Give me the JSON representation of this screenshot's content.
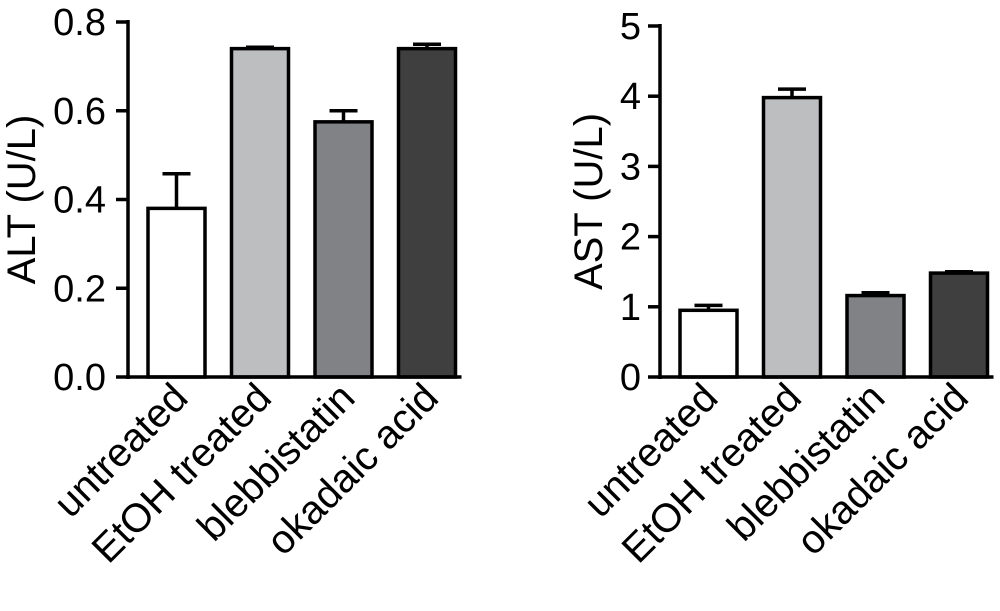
{
  "chart_data": [
    {
      "type": "bar",
      "title": "",
      "xlabel": "",
      "ylabel": "ALT (U/L)",
      "ylim": [
        0,
        0.8
      ],
      "yticks": [
        0,
        0.2,
        0.4,
        0.6,
        0.8
      ],
      "ytick_labels": [
        "0.0",
        "0.2",
        "0.4",
        "0.6",
        "0.8"
      ],
      "grid": false,
      "categories": [
        "untreated",
        "EtOH treated",
        "blebbistatin",
        "okadaic acid"
      ],
      "values": [
        0.38,
        0.74,
        0.575,
        0.74
      ],
      "errors": [
        0.078,
        0.003,
        0.025,
        0.01
      ],
      "colors": [
        "#ffffff",
        "#bdbec0",
        "#818285",
        "#3f3f3f"
      ]
    },
    {
      "type": "bar",
      "title": "",
      "xlabel": "",
      "ylabel": "AST (U/L)",
      "ylim": [
        0,
        5
      ],
      "yticks": [
        0,
        1,
        2,
        3,
        4,
        5
      ],
      "ytick_labels": [
        "0",
        "1",
        "2",
        "3",
        "4",
        "5"
      ],
      "grid": false,
      "categories": [
        "untreated",
        "EtOH treated",
        "blebbistatin",
        "okadaic acid"
      ],
      "values": [
        0.95,
        3.98,
        1.16,
        1.48
      ],
      "errors": [
        0.07,
        0.12,
        0.04,
        0.02
      ],
      "colors": [
        "#ffffff",
        "#bdbec0",
        "#818285",
        "#3f3f3f"
      ]
    }
  ]
}
